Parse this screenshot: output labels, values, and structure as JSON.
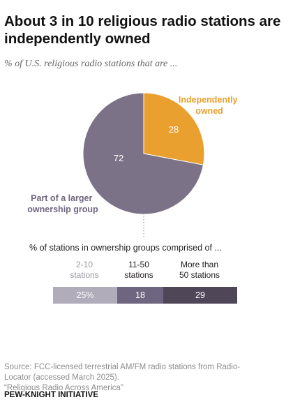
{
  "header": {
    "title": "About 3 in 10 religious radio stations are independently owned",
    "subtitle": "% of U.S. religious radio stations that are ..."
  },
  "colors": {
    "independent": "#e9a02f",
    "ownership_group": "#7b7288",
    "seg_small": "#b1acb9",
    "seg_mid": "#6e6680",
    "seg_large": "#4f4658"
  },
  "chart_data": [
    {
      "type": "pie",
      "slices": [
        {
          "label": "Independently owned",
          "value": 28
        },
        {
          "label": "Part of a larger ownership group",
          "value": 72
        }
      ]
    },
    {
      "type": "bar",
      "orientation": "horizontal-stacked",
      "title": "% of stations in ownership groups comprised of ...",
      "categories": [
        "2-10 stations",
        "11-50 stations",
        "More than 50 stations"
      ],
      "value_labels": [
        "25%",
        "18",
        "29"
      ],
      "values": [
        25,
        18,
        29
      ]
    }
  ],
  "labels": {
    "independent_l1": "Independently",
    "independent_l2": "owned",
    "group_l1": "Part of a larger",
    "group_l2": "ownership group",
    "small_l1": "2-10",
    "small_l2": "stations",
    "mid_l1": "11-50",
    "mid_l2": "stations",
    "large_l1": "More than",
    "large_l2": "50 stations"
  },
  "footer": {
    "source_l1": "Source: FCC-licensed terrestrial AM/FM radio stations from Radio-",
    "source_l2": "Locator (accessed March 2025).",
    "source_l3": "“Religious Radio Across America”",
    "brand": "PEW-KNIGHT INITIATIVE"
  }
}
